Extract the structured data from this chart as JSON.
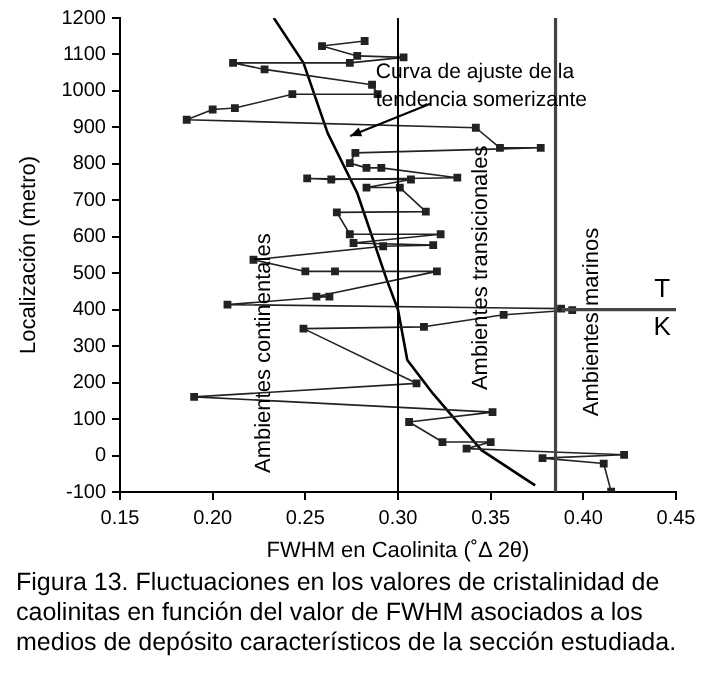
{
  "chart_data": {
    "type": "line",
    "xlabel": "FWHM en Caolinita (˚Δ 2θ)",
    "ylabel": "Localización (metro)",
    "xlim": [
      0.15,
      0.45
    ],
    "xticks": [
      {
        "value": 0.15,
        "label": "0.15"
      },
      {
        "value": 0.2,
        "label": "0.20"
      },
      {
        "value": 0.25,
        "label": "0.25"
      },
      {
        "value": 0.3,
        "label": "0.30"
      },
      {
        "value": 0.35,
        "label": "0.35"
      },
      {
        "value": 0.4,
        "label": "0.40"
      },
      {
        "value": 0.45,
        "label": "0.45"
      }
    ],
    "ylim": [
      -100,
      1200
    ],
    "yticks": [
      -100,
      0,
      100,
      200,
      300,
      400,
      500,
      600,
      700,
      800,
      900,
      1000,
      1100,
      1200
    ],
    "grid": false,
    "series": [
      {
        "type": "line",
        "color": "#222222",
        "marker": "square",
        "x": [
          0.282,
          0.259,
          0.278,
          0.303,
          0.274,
          0.211,
          0.228,
          0.286,
          0.289,
          0.243,
          0.212,
          0.2,
          0.186,
          0.342,
          0.355,
          0.377,
          0.277,
          0.274,
          0.283,
          0.291,
          0.332,
          0.264,
          0.251,
          0.307,
          0.283,
          0.301,
          0.315,
          0.267,
          0.274,
          0.323,
          0.276,
          0.319,
          0.292,
          0.222,
          0.25,
          0.266,
          0.321,
          0.256,
          0.263,
          0.208,
          0.388,
          0.394,
          0.357,
          0.314,
          0.249,
          0.31,
          0.19,
          0.351,
          0.306,
          0.324,
          0.35,
          0.337,
          0.422,
          0.378,
          0.411,
          0.415
        ],
        "values": [
          1137,
          1123,
          1096,
          1092,
          1077,
          1077,
          1059,
          1017,
          991,
          991,
          953,
          949,
          921,
          899,
          844,
          844,
          830,
          802,
          789,
          789,
          762,
          757,
          760,
          757,
          735,
          735,
          669,
          667,
          607,
          607,
          583,
          577,
          574,
          537,
          505,
          505,
          505,
          436,
          436,
          414,
          403,
          399,
          386,
          353,
          348,
          198,
          161,
          119,
          92,
          37,
          37,
          19,
          2,
          -7,
          -22,
          -99
        ]
      },
      {
        "type": "line",
        "color": "#000000",
        "marker": "none",
        "x": [
          0.233,
          0.249,
          0.262,
          0.278,
          0.294,
          0.3,
          0.305,
          0.319,
          0.345,
          0.374
        ],
        "values": [
          1200,
          1077,
          885,
          720,
          481,
          400,
          262,
          169,
          15,
          -82
        ]
      }
    ],
    "ref_lines": [
      {
        "axis": "x",
        "value": 0.3,
        "color": "#000000"
      },
      {
        "axis": "x",
        "value": 0.385,
        "color": "#444444"
      },
      {
        "axis": "y",
        "value": 400,
        "color": "#444444"
      }
    ],
    "annotations": [
      "Curva de ajuste de la tendencia somerizante",
      "Ambientes continentales",
      "Ambientes transicionales",
      "Ambientes marinos",
      "T",
      "K",
      "Figura 13. Fluctuaciones en los valores de cristalinidad de caolinitas en función del valor de FWHM asociados a los medios de depósito característicos de la sección estudiada."
    ]
  }
}
